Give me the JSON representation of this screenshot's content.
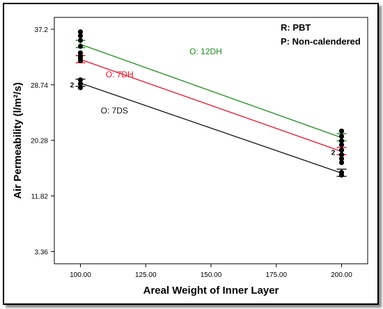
{
  "chart_data": {
    "type": "line",
    "xlabel": "Areal Weight of Inner Layer",
    "ylabel": "Air Permeability (l/m²/s)",
    "x_ticks": [
      "100.00",
      "125.00",
      "150.00",
      "175.00",
      "200.00"
    ],
    "x_tick_values": [
      100,
      125,
      150,
      175,
      200
    ],
    "y_ticks": [
      "3.36",
      "11.82",
      "20.28",
      "28.74",
      "37.2"
    ],
    "y_tick_values": [
      3.36,
      11.82,
      20.28,
      28.74,
      37.2
    ],
    "xlim": [
      90,
      210
    ],
    "ylim": [
      1.5,
      39
    ],
    "annotations": [
      "R: PBT",
      "P: Non-calendered"
    ],
    "series": [
      {
        "name": "O: 12DH",
        "color": "#1a8a1a",
        "x": [
          100,
          200
        ],
        "y": [
          34.9,
          20.7
        ],
        "band": [
          [
            0.5,
            0.6
          ],
          [
            0.5,
            0.6
          ]
        ]
      },
      {
        "name": "O: 7DH",
        "color": "#e8102a",
        "x": [
          100,
          200
        ],
        "y": [
          32.6,
          18.6
        ],
        "band": [
          [
            0.5,
            0.6
          ],
          [
            0.5,
            0.6
          ]
        ]
      },
      {
        "name": "O: 7DS",
        "color": "#111111",
        "x": [
          100,
          200
        ],
        "y": [
          29.0,
          15.3
        ],
        "band": [
          [
            0.5,
            0.6
          ],
          [
            0.5,
            0.6
          ]
        ]
      }
    ],
    "points_label": "2",
    "points": [
      {
        "x": 100,
        "y": 36.8
      },
      {
        "x": 100,
        "y": 36.2
      },
      {
        "x": 100,
        "y": 35.5
      },
      {
        "x": 100,
        "y": 34.6
      },
      {
        "x": 100,
        "y": 33.6
      },
      {
        "x": 100,
        "y": 33.1
      },
      {
        "x": 100,
        "y": 32.8
      },
      {
        "x": 100,
        "y": 32.4
      },
      {
        "x": 100,
        "y": 29.5
      },
      {
        "x": 100,
        "y": 28.9
      },
      {
        "x": 100,
        "y": 28.3
      },
      {
        "x": 200,
        "y": 21.7
      },
      {
        "x": 200,
        "y": 20.9
      },
      {
        "x": 200,
        "y": 20.2
      },
      {
        "x": 200,
        "y": 19.6
      },
      {
        "x": 200,
        "y": 18.8
      },
      {
        "x": 200,
        "y": 18.1
      },
      {
        "x": 200,
        "y": 17.5
      },
      {
        "x": 200,
        "y": 16.9
      },
      {
        "x": 200,
        "y": 15.4
      },
      {
        "x": 200,
        "y": 15.0
      }
    ],
    "grid": false,
    "legend": "inline"
  }
}
